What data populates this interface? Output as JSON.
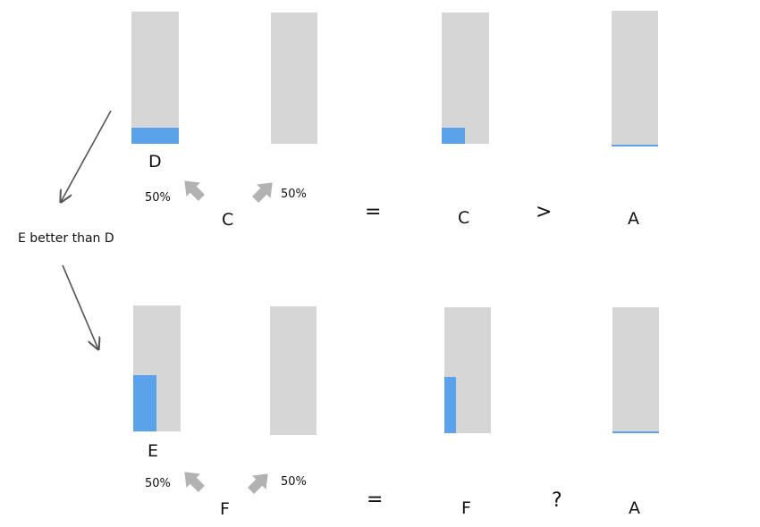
{
  "colors": {
    "bar_track": "#d6d6d6",
    "bar_fill": "#5aa3ea",
    "arrow": "#555555",
    "fat_arrow": "#b2b2b2"
  },
  "side_note": "E better than D",
  "rows": [
    {
      "name": "top",
      "left_label": "D",
      "left_fill": 0.12,
      "split_left_pct": "50%",
      "split_right_pct": "50%",
      "mix_label": "C",
      "equals": "=",
      "result_label": "C",
      "result_fill": 0.12,
      "compare": ">",
      "target_label": "A",
      "target_fill": 0.01
    },
    {
      "name": "bottom",
      "left_label": "E",
      "left_fill": 0.45,
      "split_left_pct": "50%",
      "split_right_pct": "50%",
      "mix_label": "F",
      "equals": "=",
      "result_label": "F",
      "result_fill": 0.45,
      "compare": "?",
      "target_label": "A",
      "target_fill": 0.01
    }
  ]
}
